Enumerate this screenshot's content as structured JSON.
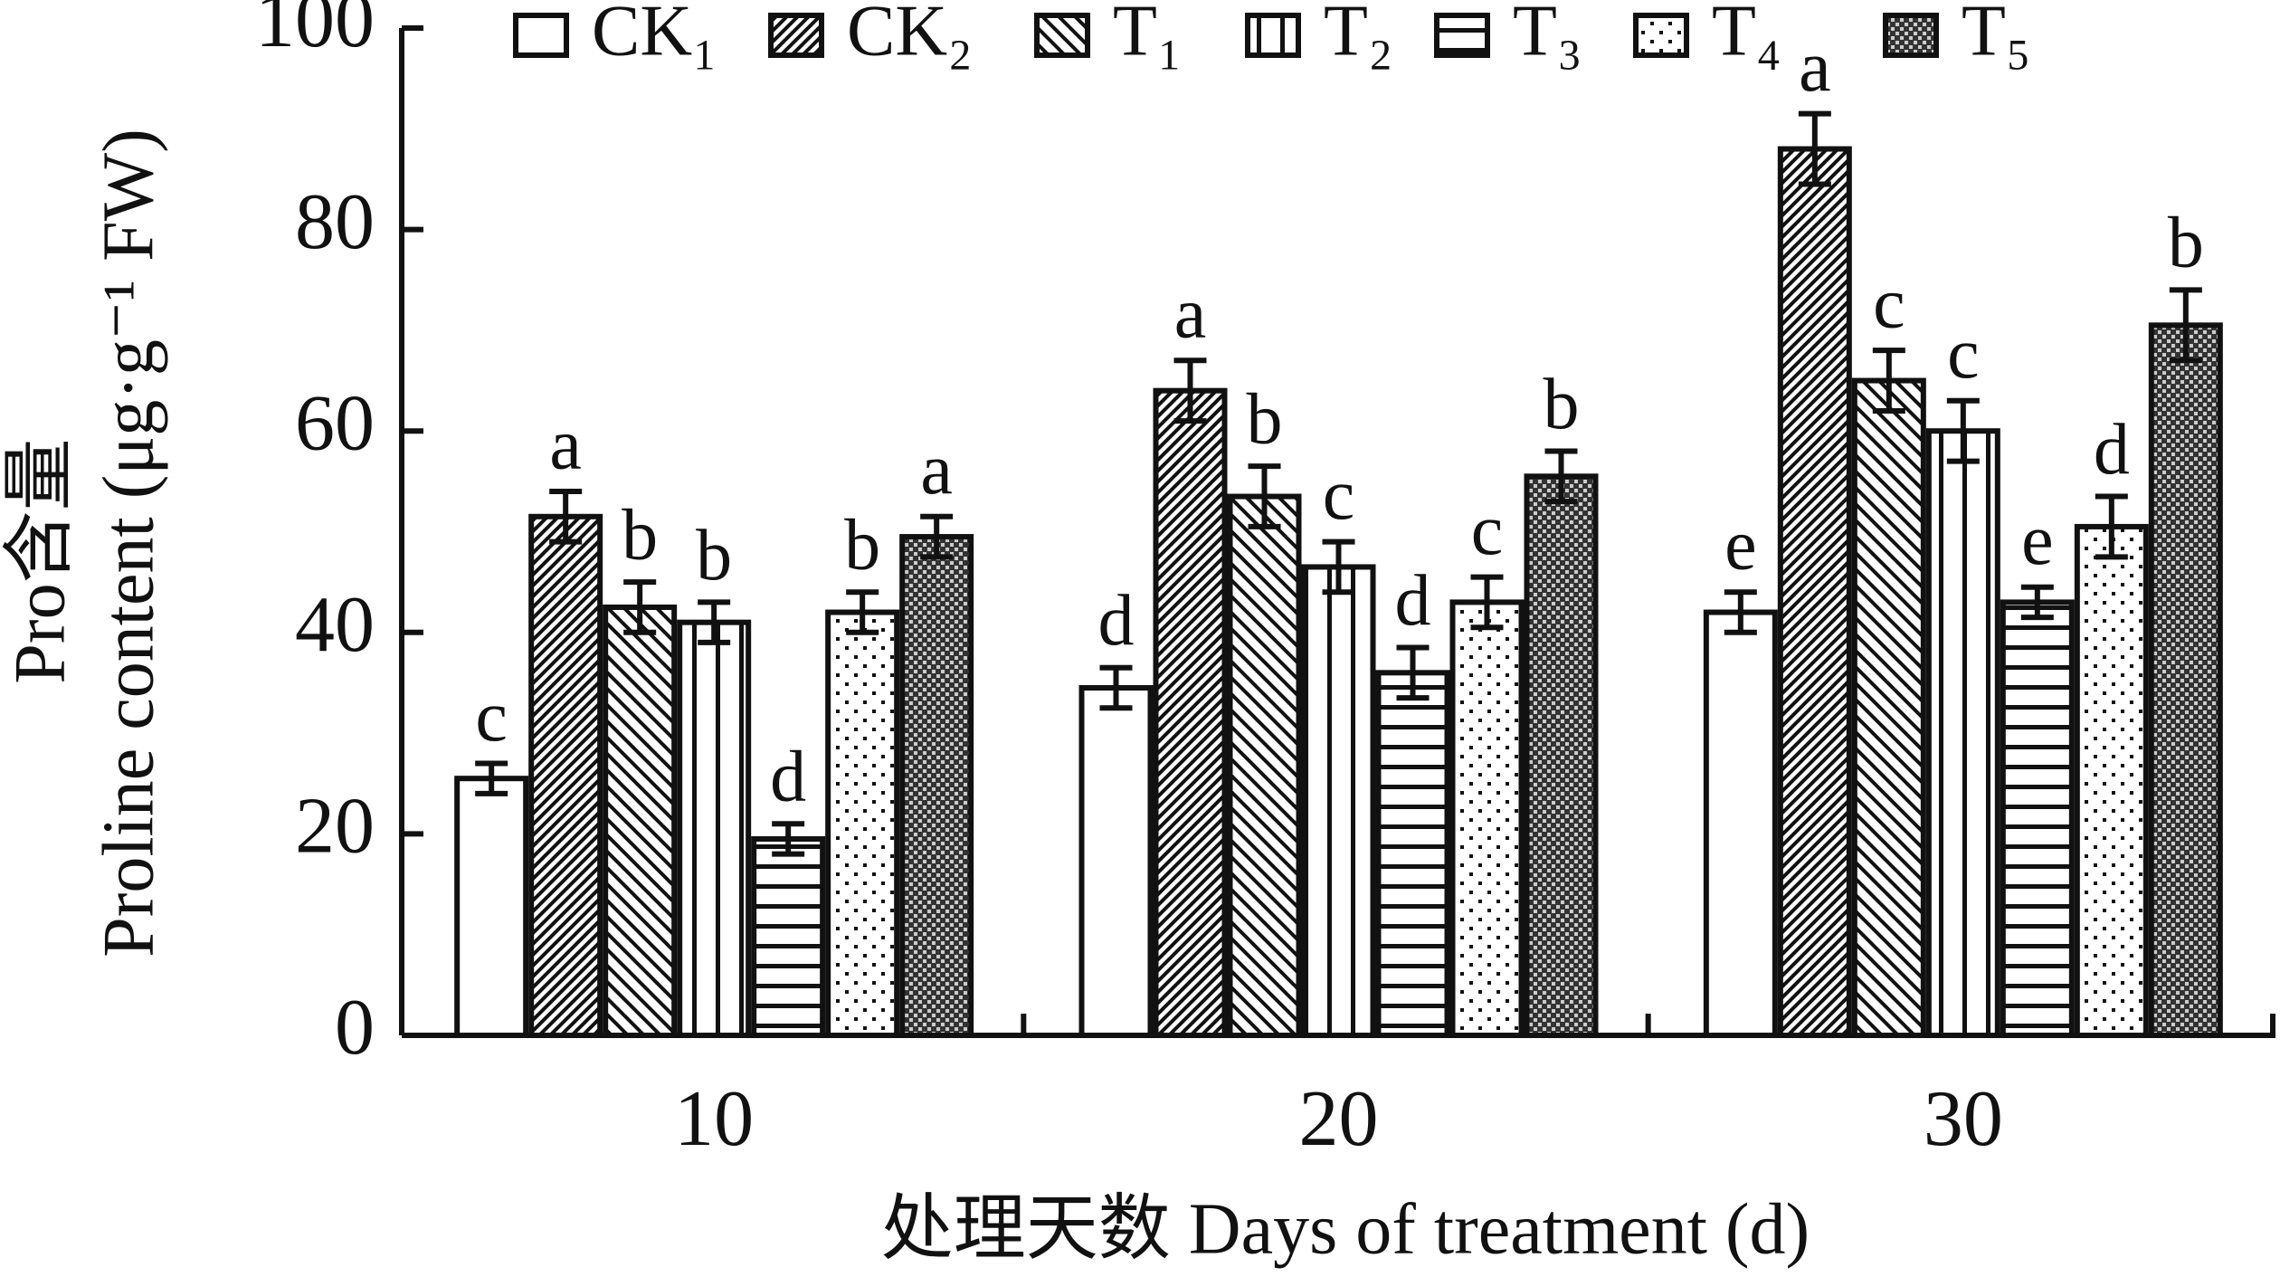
{
  "chart_data": {
    "type": "bar",
    "y_label": [
      "Pro含量",
      "Proline content (μg·g⁻¹ FW)"
    ],
    "x_label": "处理天数 Days of treatment (d)",
    "categories": [
      "10",
      "20",
      "30"
    ],
    "ylim": [
      0,
      100
    ],
    "yticks": [
      0,
      20,
      40,
      60,
      80,
      100
    ],
    "series": [
      {
        "name": "CK₁",
        "color": "#111111",
        "pattern": "none",
        "values": [
          25.5,
          34.5,
          42
        ],
        "errors": [
          1.5,
          2,
          2
        ],
        "significance": [
          "c",
          "d",
          "e"
        ]
      },
      {
        "name": "CK₂",
        "color": "#111111",
        "pattern": "diagonal",
        "values": [
          51.5,
          64,
          88
        ],
        "errors": [
          2.5,
          3,
          3.5
        ],
        "significance": [
          "a",
          "a",
          "a"
        ]
      },
      {
        "name": "T₁",
        "color": "#111111",
        "pattern": "back-diagonal",
        "values": [
          42.5,
          53.5,
          65
        ],
        "errors": [
          2.5,
          3,
          3
        ],
        "significance": [
          "b",
          "b",
          "c"
        ]
      },
      {
        "name": "T₂",
        "color": "#111111",
        "pattern": "vertical",
        "values": [
          41,
          46.5,
          60
        ],
        "errors": [
          2,
          2.5,
          3
        ],
        "significance": [
          "b",
          "c",
          "c"
        ]
      },
      {
        "name": "T₃",
        "color": "#111111",
        "pattern": "horizontal",
        "values": [
          19.5,
          36,
          43
        ],
        "errors": [
          1.5,
          2.5,
          1.5
        ],
        "significance": [
          "d",
          "d",
          "e"
        ]
      },
      {
        "name": "T₄",
        "color": "#111111",
        "pattern": "dots",
        "values": [
          42,
          43,
          50.5
        ],
        "errors": [
          2,
          2.5,
          3
        ],
        "significance": [
          "b",
          "c",
          "d"
        ]
      },
      {
        "name": "T₅",
        "color": "#111111",
        "pattern": "checker",
        "values": [
          49.5,
          55.5,
          70.5
        ],
        "errors": [
          2,
          2.5,
          3.5
        ],
        "significance": [
          "a",
          "b",
          "b"
        ]
      }
    ]
  }
}
